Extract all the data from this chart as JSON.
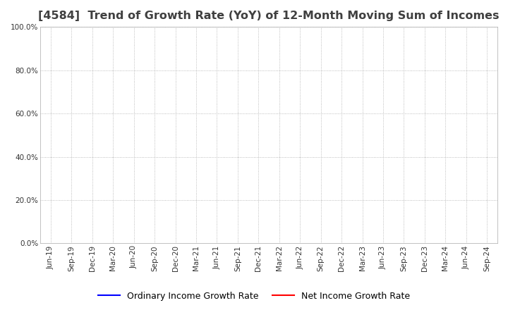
{
  "title": "[4584]  Trend of Growth Rate (YoY) of 12-Month Moving Sum of Incomes",
  "title_fontsize": 11.5,
  "ylim": [
    0.0,
    1.0
  ],
  "yticks": [
    0.0,
    0.2,
    0.4,
    0.6,
    0.8,
    1.0
  ],
  "ytick_labels": [
    "0.0%",
    "20.0%",
    "40.0%",
    "60.0%",
    "80.0%",
    "100.0%"
  ],
  "x_labels": [
    "Jun-19",
    "Sep-19",
    "Dec-19",
    "Mar-20",
    "Jun-20",
    "Sep-20",
    "Dec-20",
    "Mar-21",
    "Jun-21",
    "Sep-21",
    "Dec-21",
    "Mar-22",
    "Jun-22",
    "Sep-22",
    "Dec-22",
    "Mar-23",
    "Jun-23",
    "Sep-23",
    "Dec-23",
    "Mar-24",
    "Jun-24",
    "Sep-24"
  ],
  "ordinary_income_color": "#0000FF",
  "net_income_color": "#FF0000",
  "ordinary_income_label": "Ordinary Income Growth Rate",
  "net_income_label": "Net Income Growth Rate",
  "background_color": "#FFFFFF",
  "plot_bg_color": "#FFFFFF",
  "grid_color": "#AAAAAA",
  "ordinary_income_data": [
    null,
    null,
    null,
    null,
    null,
    null,
    null,
    null,
    null,
    null,
    null,
    null,
    null,
    null,
    null,
    null,
    null,
    null,
    null,
    null,
    null,
    null
  ],
  "net_income_data": [
    null,
    null,
    null,
    null,
    null,
    null,
    null,
    null,
    null,
    null,
    null,
    null,
    null,
    null,
    null,
    null,
    null,
    null,
    null,
    null,
    null,
    null
  ],
  "line_width": 1.5,
  "legend_fontsize": 9,
  "tick_fontsize": 7.5,
  "title_color": "#404040"
}
